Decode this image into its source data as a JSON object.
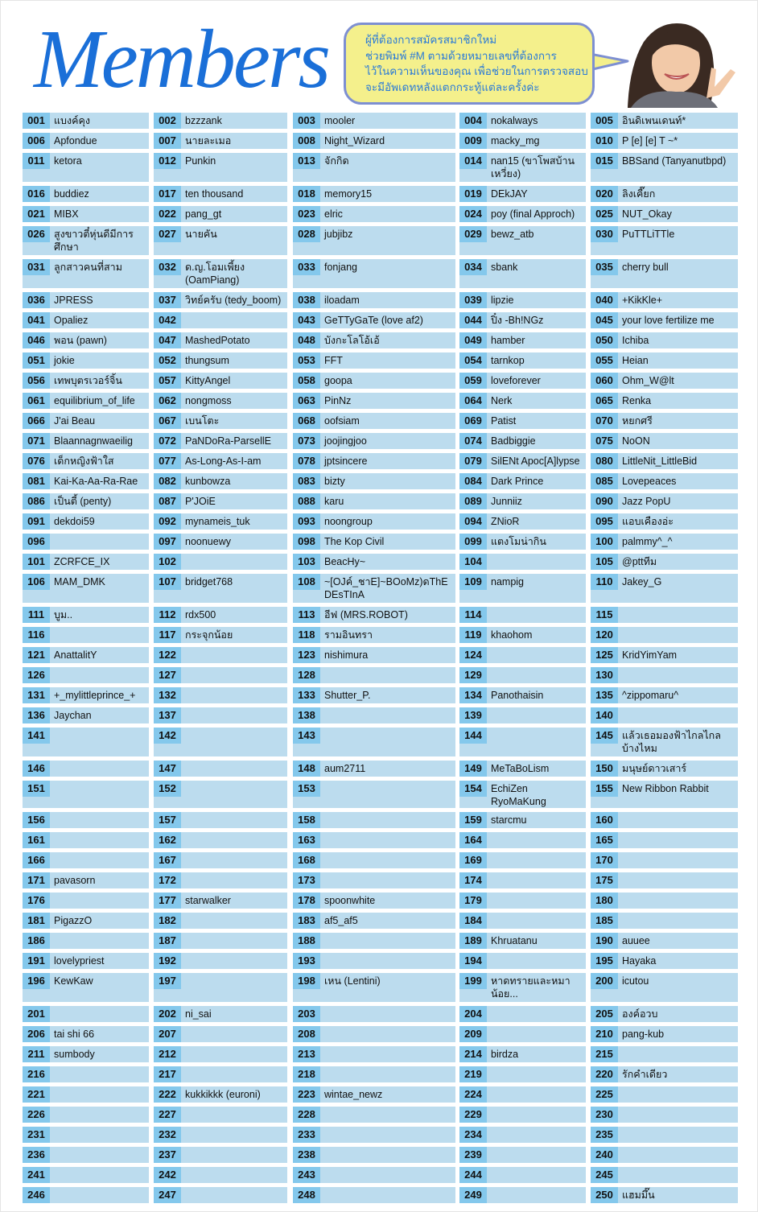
{
  "header": {
    "title": "Members",
    "notice_lines": [
      "ผู้ที่ต้องการสมัครสมาชิกใหม่",
      "ช่วยพิมพ์ #M ตามด้วยหมายเลขที่ต้องการ",
      "ไว้ในความเห็นของคุณ เพื่อช่วยในการตรวจสอบ",
      "จะมีอัพเดทหลังแตกกระทู้แต่ละครั้งค่ะ"
    ]
  },
  "colors": {
    "number_bg": "#84c8ec",
    "name_bg": "#bcdcee",
    "title": "#1a6fd8",
    "bubble": "#f4f08c"
  },
  "members": [
    [
      [
        "001",
        "แบงค์คุง"
      ],
      [
        "002",
        "bzzzank"
      ],
      [
        "003",
        "mooler"
      ],
      [
        "004",
        "nokalways"
      ],
      [
        "005",
        "อินดิเพนเดนท์*"
      ]
    ],
    [
      [
        "006",
        "Apfondue"
      ],
      [
        "007",
        "นายละเมอ"
      ],
      [
        "008",
        "Night_Wizard"
      ],
      [
        "009",
        "macky_mg"
      ],
      [
        "010",
        "P [e] [e] T ~*"
      ]
    ],
    [
      [
        "011",
        "ketora"
      ],
      [
        "012",
        "Punkin"
      ],
      [
        "013",
        "จักกิด"
      ],
      [
        "014",
        "nan15 (ขาโพสบ้านเหวี่ยง)"
      ],
      [
        "015",
        "BBSand (Tanyanutbpd)"
      ]
    ],
    [
      [
        "016",
        "buddiez"
      ],
      [
        "017",
        "ten thousand"
      ],
      [
        "018",
        "memory15"
      ],
      [
        "019",
        "DEkJAY"
      ],
      [
        "020",
        "ลิงเคี๊ยก"
      ]
    ],
    [
      [
        "021",
        "MIBX"
      ],
      [
        "022",
        "pang_gt"
      ],
      [
        "023",
        "elric"
      ],
      [
        "024",
        "poy (final Approch)"
      ],
      [
        "025",
        "NUT_Okay"
      ]
    ],
    [
      [
        "026",
        "สูงขาวตี๋หุ่นดีมีการศึกษา"
      ],
      [
        "027",
        "นายคัน"
      ],
      [
        "028",
        "jubjibz"
      ],
      [
        "029",
        "bewz_atb"
      ],
      [
        "030",
        "PuTTLiTTle"
      ]
    ],
    [
      [
        "031",
        "ลูกสาวคนที่สาม"
      ],
      [
        "032",
        "ด.ญ.โอมเพี้ยง (OamPiang)"
      ],
      [
        "033",
        "fonjang"
      ],
      [
        "034",
        "sbank"
      ],
      [
        "035",
        "cherry bull"
      ]
    ],
    [
      [
        "036",
        "JPRESS"
      ],
      [
        "037",
        "วิทย์ครับ (tedy_boom)"
      ],
      [
        "038",
        "iloadam"
      ],
      [
        "039",
        "lipzie"
      ],
      [
        "040",
        "+KikKle+"
      ]
    ],
    [
      [
        "041",
        "Opaliez"
      ],
      [
        "042",
        ""
      ],
      [
        "043",
        "GeTTyGaTe (love af2)"
      ],
      [
        "044",
        "ปิ๋ง -Bh!NGz"
      ],
      [
        "045",
        "your love fertilize me"
      ]
    ],
    [
      [
        "046",
        "พอน (pawn)"
      ],
      [
        "047",
        "MashedPotato"
      ],
      [
        "048",
        "บังกะโลโอ้เอ้"
      ],
      [
        "049",
        "hamber"
      ],
      [
        "050",
        "Ichiba"
      ]
    ],
    [
      [
        "051",
        "jokie"
      ],
      [
        "052",
        "thungsum"
      ],
      [
        "053",
        "FFT"
      ],
      [
        "054",
        "tarnkop"
      ],
      [
        "055",
        "Heian"
      ]
    ],
    [
      [
        "056",
        "เทพบุตรเวอร์จิ้น"
      ],
      [
        "057",
        "KittyAngel"
      ],
      [
        "058",
        "goopa"
      ],
      [
        "059",
        "loveforever"
      ],
      [
        "060",
        "Ohm_W@lt"
      ]
    ],
    [
      [
        "061",
        "equilibrium_of_life"
      ],
      [
        "062",
        "nongmoss"
      ],
      [
        "063",
        "PinNz"
      ],
      [
        "064",
        "Nerk"
      ],
      [
        "065",
        "Renka"
      ]
    ],
    [
      [
        "066",
        "J'ai Beau"
      ],
      [
        "067",
        "เบนโตะ"
      ],
      [
        "068",
        "oofsiam"
      ],
      [
        "069",
        "Patist"
      ],
      [
        "070",
        "หยกศรี"
      ]
    ],
    [
      [
        "071",
        "Blaannagnwaeilig"
      ],
      [
        "072",
        "PaNDoRa-ParsellE"
      ],
      [
        "073",
        "joojingjoo"
      ],
      [
        "074",
        "Badbiggie"
      ],
      [
        "075",
        "NoON"
      ]
    ],
    [
      [
        "076",
        "เด็กหญิงฟ้าใส"
      ],
      [
        "077",
        "As-Long-As-I-am"
      ],
      [
        "078",
        "jptsincere"
      ],
      [
        "079",
        "SilENt Apoc[A]lypse"
      ],
      [
        "080",
        "LittleNit_LittleBid"
      ]
    ],
    [
      [
        "081",
        "Kai-Ka-Aa-Ra-Rae"
      ],
      [
        "082",
        "kunbowza"
      ],
      [
        "083",
        "bizty"
      ],
      [
        "084",
        "Dark Prince"
      ],
      [
        "085",
        "Lovepeaces"
      ]
    ],
    [
      [
        "086",
        "เป็นตี้ (penty)"
      ],
      [
        "087",
        "P'JOiE"
      ],
      [
        "088",
        "karu"
      ],
      [
        "089",
        "Junniiz"
      ],
      [
        "090",
        "Jazz PopU"
      ]
    ],
    [
      [
        "091",
        "dekdoi59"
      ],
      [
        "092",
        "mynameis_tuk"
      ],
      [
        "093",
        "noongroup"
      ],
      [
        "094",
        "ZNioR"
      ],
      [
        "095",
        "แอบเคืองอ่ะ"
      ]
    ],
    [
      [
        "096",
        ""
      ],
      [
        "097",
        "noonuewy"
      ],
      [
        "098",
        "The Kop Civil"
      ],
      [
        "099",
        "แตงโมน่ากิน"
      ],
      [
        "100",
        "palmmy^_^"
      ]
    ],
    [
      [
        "101",
        "ZCRFCE_IX"
      ],
      [
        "102",
        ""
      ],
      [
        "103",
        "BeacHy~"
      ],
      [
        "104",
        ""
      ],
      [
        "105",
        "@pttทีม"
      ]
    ],
    [
      [
        "106",
        "MAM_DMK"
      ],
      [
        "107",
        "bridget768"
      ],
      [
        "108",
        "~[OJค์_ชาE]~BOoMz)ดThE DEsTInA"
      ],
      [
        "109",
        "nampig"
      ],
      [
        "110",
        "Jakey_G"
      ]
    ],
    [
      [
        "111",
        "บูม.."
      ],
      [
        "112",
        "rdx500"
      ],
      [
        "113",
        "อีฟ (MRS.ROBOT)"
      ],
      [
        "114",
        ""
      ],
      [
        "115",
        ""
      ]
    ],
    [
      [
        "116",
        ""
      ],
      [
        "117",
        "กระจุกน้อย"
      ],
      [
        "118",
        "รามอินทรา"
      ],
      [
        "119",
        "khaohom"
      ],
      [
        "120",
        ""
      ]
    ],
    [
      [
        "121",
        "AnattalitY"
      ],
      [
        "122",
        ""
      ],
      [
        "123",
        "nishimura"
      ],
      [
        "124",
        ""
      ],
      [
        "125",
        "KridYimYam"
      ]
    ],
    [
      [
        "126",
        ""
      ],
      [
        "127",
        ""
      ],
      [
        "128",
        ""
      ],
      [
        "129",
        ""
      ],
      [
        "130",
        ""
      ]
    ],
    [
      [
        "131",
        "+_mylittleprince_+"
      ],
      [
        "132",
        ""
      ],
      [
        "133",
        "Shutter_P."
      ],
      [
        "134",
        "Panothaisin"
      ],
      [
        "135",
        "^zippomaru^"
      ]
    ],
    [
      [
        "136",
        "Jaychan"
      ],
      [
        "137",
        ""
      ],
      [
        "138",
        ""
      ],
      [
        "139",
        ""
      ],
      [
        "140",
        ""
      ]
    ],
    [
      [
        "141",
        ""
      ],
      [
        "142",
        ""
      ],
      [
        "143",
        ""
      ],
      [
        "144",
        ""
      ],
      [
        "145",
        "แล้วเธอมองฟ้าไกลไกลบ้างไหม"
      ]
    ],
    [
      [
        "146",
        ""
      ],
      [
        "147",
        ""
      ],
      [
        "148",
        "aum2711"
      ],
      [
        "149",
        "MeTaBoLism"
      ],
      [
        "150",
        "มนุษย์ดาวเสาร์"
      ]
    ],
    [
      [
        "151",
        ""
      ],
      [
        "152",
        ""
      ],
      [
        "153",
        ""
      ],
      [
        "154",
        "EchiZen RyoMaKung"
      ],
      [
        "155",
        "New Ribbon Rabbit"
      ]
    ],
    [
      [
        "156",
        ""
      ],
      [
        "157",
        ""
      ],
      [
        "158",
        ""
      ],
      [
        "159",
        "starcmu"
      ],
      [
        "160",
        ""
      ]
    ],
    [
      [
        "161",
        ""
      ],
      [
        "162",
        ""
      ],
      [
        "163",
        ""
      ],
      [
        "164",
        ""
      ],
      [
        "165",
        ""
      ]
    ],
    [
      [
        "166",
        ""
      ],
      [
        "167",
        ""
      ],
      [
        "168",
        ""
      ],
      [
        "169",
        ""
      ],
      [
        "170",
        ""
      ]
    ],
    [
      [
        "171",
        "pavasorn"
      ],
      [
        "172",
        ""
      ],
      [
        "173",
        ""
      ],
      [
        "174",
        ""
      ],
      [
        "175",
        ""
      ]
    ],
    [
      [
        "176",
        ""
      ],
      [
        "177",
        "starwalker"
      ],
      [
        "178",
        "spoonwhite"
      ],
      [
        "179",
        ""
      ],
      [
        "180",
        ""
      ]
    ],
    [
      [
        "181",
        "PigazzO"
      ],
      [
        "182",
        ""
      ],
      [
        "183",
        "af5_af5"
      ],
      [
        "184",
        ""
      ],
      [
        "185",
        ""
      ]
    ],
    [
      [
        "186",
        ""
      ],
      [
        "187",
        ""
      ],
      [
        "188",
        ""
      ],
      [
        "189",
        "Khruatanu"
      ],
      [
        "190",
        "auuee"
      ]
    ],
    [
      [
        "191",
        "lovelypriest"
      ],
      [
        "192",
        ""
      ],
      [
        "193",
        ""
      ],
      [
        "194",
        ""
      ],
      [
        "195",
        "Hayaka"
      ]
    ],
    [
      [
        "196",
        "KewKaw"
      ],
      [
        "197",
        ""
      ],
      [
        "198",
        "เหน (Lentini)"
      ],
      [
        "199",
        "หาดทรายและหมาน้อย..."
      ],
      [
        "200",
        "icutou"
      ]
    ],
    [
      [
        "201",
        ""
      ],
      [
        "202",
        "ni_sai"
      ],
      [
        "203",
        ""
      ],
      [
        "204",
        ""
      ],
      [
        "205",
        "องค์อวบ"
      ]
    ],
    [
      [
        "206",
        "tai shi 66"
      ],
      [
        "207",
        ""
      ],
      [
        "208",
        ""
      ],
      [
        "209",
        ""
      ],
      [
        "210",
        "pang-kub"
      ]
    ],
    [
      [
        "211",
        "sumbody"
      ],
      [
        "212",
        ""
      ],
      [
        "213",
        ""
      ],
      [
        "214",
        "birdza"
      ],
      [
        "215",
        ""
      ]
    ],
    [
      [
        "216",
        ""
      ],
      [
        "217",
        ""
      ],
      [
        "218",
        ""
      ],
      [
        "219",
        ""
      ],
      [
        "220",
        "รักคำเดียว"
      ]
    ],
    [
      [
        "221",
        ""
      ],
      [
        "222",
        "kukkikkk (euroni)"
      ],
      [
        "223",
        "wintae_newz"
      ],
      [
        "224",
        ""
      ],
      [
        "225",
        ""
      ]
    ],
    [
      [
        "226",
        ""
      ],
      [
        "227",
        ""
      ],
      [
        "228",
        ""
      ],
      [
        "229",
        ""
      ],
      [
        "230",
        ""
      ]
    ],
    [
      [
        "231",
        ""
      ],
      [
        "232",
        ""
      ],
      [
        "233",
        ""
      ],
      [
        "234",
        ""
      ],
      [
        "235",
        ""
      ]
    ],
    [
      [
        "236",
        ""
      ],
      [
        "237",
        ""
      ],
      [
        "238",
        ""
      ],
      [
        "239",
        ""
      ],
      [
        "240",
        ""
      ]
    ],
    [
      [
        "241",
        ""
      ],
      [
        "242",
        ""
      ],
      [
        "243",
        ""
      ],
      [
        "244",
        ""
      ],
      [
        "245",
        ""
      ]
    ],
    [
      [
        "246",
        ""
      ],
      [
        "247",
        ""
      ],
      [
        "248",
        ""
      ],
      [
        "249",
        ""
      ],
      [
        "250",
        "แฮมมึ๊น"
      ]
    ]
  ]
}
